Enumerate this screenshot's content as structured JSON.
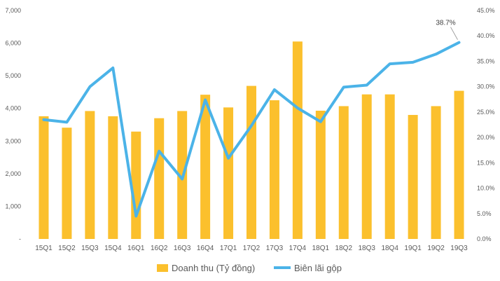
{
  "chart_data": {
    "type": "bar+line",
    "title": "",
    "categories": [
      "15Q1",
      "15Q2",
      "15Q3",
      "15Q4",
      "16Q1",
      "16Q2",
      "16Q3",
      "16Q4",
      "17Q1",
      "17Q2",
      "17Q3",
      "17Q4",
      "18Q1",
      "18Q2",
      "18Q3",
      "18Q4",
      "19Q1",
      "19Q2",
      "19Q3"
    ],
    "series": [
      {
        "name": "Doanh thu (Tỷ đồng)",
        "type": "bar",
        "axis": "left",
        "color": "#FBC02D",
        "values": [
          3760,
          3410,
          3920,
          3760,
          3290,
          3700,
          3920,
          4420,
          4030,
          4690,
          4250,
          6050,
          3930,
          4070,
          4430,
          4430,
          3800,
          4070,
          4540
        ]
      },
      {
        "name": "Biên lãi gộp",
        "type": "line",
        "axis": "right",
        "color": "#4BB3E8",
        "values": [
          23.5,
          23.0,
          30.0,
          33.7,
          4.5,
          17.3,
          11.8,
          27.4,
          15.9,
          22.3,
          29.4,
          25.8,
          23.1,
          29.9,
          30.3,
          34.5,
          34.8,
          36.4,
          38.7
        ]
      }
    ],
    "y_left": {
      "min": 0,
      "max": 7000,
      "ticks": [
        0,
        1000,
        2000,
        3000,
        4000,
        5000,
        6000,
        7000
      ],
      "tick_labels": [
        "-",
        "1,000",
        "2,000",
        "3,000",
        "4,000",
        "5,000",
        "6,000",
        "7,000"
      ]
    },
    "y_right": {
      "min": 0,
      "max": 45,
      "ticks": [
        0,
        5,
        10,
        15,
        20,
        25,
        30,
        35,
        40,
        45
      ],
      "tick_labels": [
        "0.0%",
        "5.0%",
        "10.0%",
        "15.0%",
        "20.0%",
        "25.0%",
        "30.0%",
        "35.0%",
        "40.0%",
        "45.0%"
      ]
    },
    "annotation": {
      "series": "Biên lãi gộp",
      "index": 18,
      "text": "38.7%"
    },
    "legend": {
      "position": "bottom"
    },
    "grid": false
  }
}
